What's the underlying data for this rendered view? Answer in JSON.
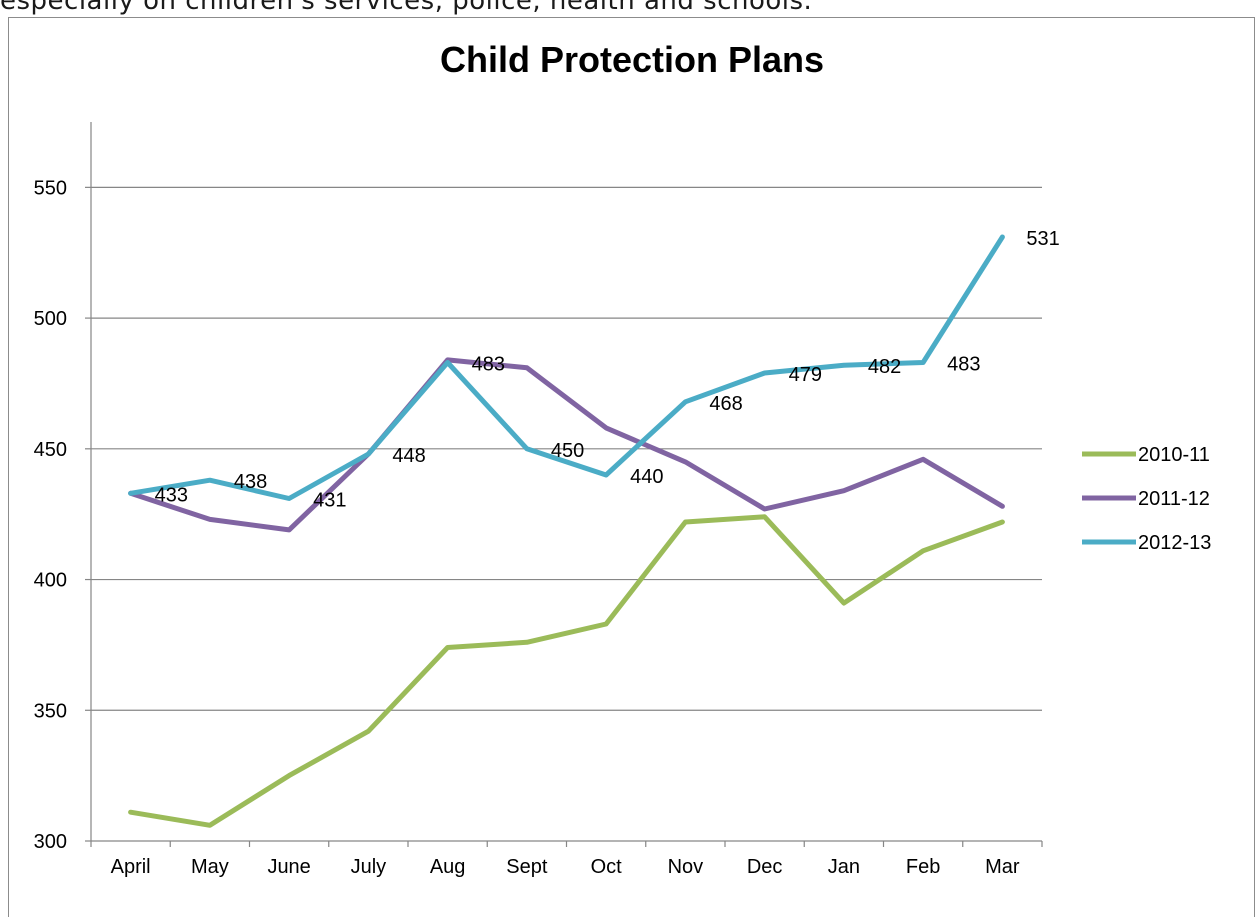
{
  "caption": "especially on children's services, police, health and schools.",
  "chart_data": {
    "type": "line",
    "title": "Child Protection Plans",
    "xlabel": "",
    "ylabel": "",
    "categories": [
      "April",
      "May",
      "June",
      "July",
      "Aug",
      "Sept",
      "Oct",
      "Nov",
      "Dec",
      "Jan",
      "Feb",
      "Mar"
    ],
    "ylim": [
      300,
      575
    ],
    "yticks": [
      300,
      350,
      400,
      450,
      500,
      550
    ],
    "grid": true,
    "legend": "right",
    "series": [
      {
        "name": "2010-11",
        "color": "#9bbb59",
        "values": [
          311,
          306,
          325,
          342,
          374,
          376,
          383,
          422,
          424,
          391,
          411,
          422
        ]
      },
      {
        "name": "2011-12",
        "color": "#8064a2",
        "values": [
          433,
          423,
          419,
          448,
          484,
          481,
          458,
          445,
          427,
          434,
          446,
          428
        ]
      },
      {
        "name": "2012-13",
        "color": "#4bacc6",
        "values": [
          433,
          438,
          431,
          448,
          483,
          450,
          440,
          468,
          479,
          482,
          483,
          531
        ],
        "labeled": true
      }
    ]
  }
}
